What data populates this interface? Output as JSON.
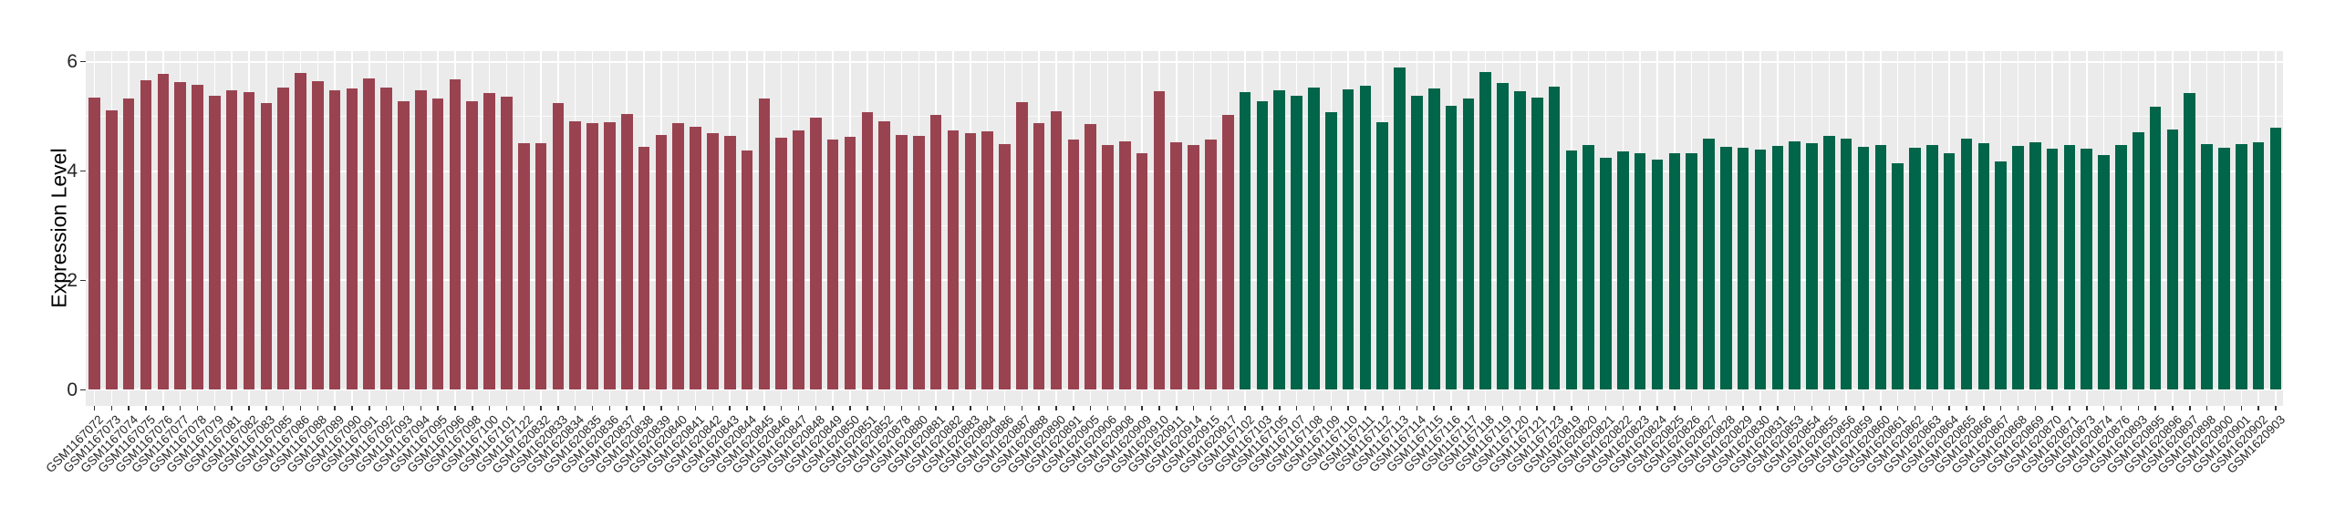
{
  "chart_data": {
    "type": "bar",
    "title": "",
    "xlabel": "",
    "ylabel": "Expression Level",
    "ylim": [
      -0.3,
      6.2
    ],
    "yticks": [
      0,
      2,
      4,
      6
    ],
    "yminor": [
      1,
      3,
      5
    ],
    "grid": "on",
    "legend": "none",
    "panel_bg": "#EBEBEB",
    "grid_color": "#FFFFFF",
    "tick_color": "#333333",
    "group_colors": {
      "A": "#9A4350",
      "B": "#016549"
    },
    "samples": [
      {
        "id": "GSM1167072",
        "v": 5.35,
        "g": "A"
      },
      {
        "id": "GSM1167073",
        "v": 5.11,
        "g": "A"
      },
      {
        "id": "GSM1167074",
        "v": 5.32,
        "g": "A"
      },
      {
        "id": "GSM1167075",
        "v": 5.66,
        "g": "A"
      },
      {
        "id": "GSM1167076",
        "v": 5.78,
        "g": "A"
      },
      {
        "id": "GSM1167077",
        "v": 5.62,
        "g": "A"
      },
      {
        "id": "GSM1167078",
        "v": 5.57,
        "g": "A"
      },
      {
        "id": "GSM1167079",
        "v": 5.38,
        "g": "A"
      },
      {
        "id": "GSM1167081",
        "v": 5.48,
        "g": "A"
      },
      {
        "id": "GSM1167082",
        "v": 5.45,
        "g": "A"
      },
      {
        "id": "GSM1167083",
        "v": 5.25,
        "g": "A"
      },
      {
        "id": "GSM1167085",
        "v": 5.53,
        "g": "A"
      },
      {
        "id": "GSM1167086",
        "v": 5.79,
        "g": "A"
      },
      {
        "id": "GSM1167088",
        "v": 5.65,
        "g": "A"
      },
      {
        "id": "GSM1167089",
        "v": 5.48,
        "g": "A"
      },
      {
        "id": "GSM1167090",
        "v": 5.51,
        "g": "A"
      },
      {
        "id": "GSM1167091",
        "v": 5.7,
        "g": "A"
      },
      {
        "id": "GSM1167092",
        "v": 5.53,
        "g": "A"
      },
      {
        "id": "GSM1167093",
        "v": 5.28,
        "g": "A"
      },
      {
        "id": "GSM1167094",
        "v": 5.47,
        "g": "A"
      },
      {
        "id": "GSM1167095",
        "v": 5.32,
        "g": "A"
      },
      {
        "id": "GSM1167096",
        "v": 5.67,
        "g": "A"
      },
      {
        "id": "GSM1167098",
        "v": 5.27,
        "g": "A"
      },
      {
        "id": "GSM1167100",
        "v": 5.42,
        "g": "A"
      },
      {
        "id": "GSM1167101",
        "v": 5.36,
        "g": "A"
      },
      {
        "id": "GSM1167122",
        "v": 4.51,
        "g": "A"
      },
      {
        "id": "GSM1620832",
        "v": 4.51,
        "g": "A"
      },
      {
        "id": "GSM1620833",
        "v": 5.24,
        "g": "A"
      },
      {
        "id": "GSM1620834",
        "v": 4.91,
        "g": "A"
      },
      {
        "id": "GSM1620835",
        "v": 4.88,
        "g": "A"
      },
      {
        "id": "GSM1620836",
        "v": 4.89,
        "g": "A"
      },
      {
        "id": "GSM1620837",
        "v": 5.05,
        "g": "A"
      },
      {
        "id": "GSM1620838",
        "v": 4.45,
        "g": "A"
      },
      {
        "id": "GSM1620839",
        "v": 4.66,
        "g": "A"
      },
      {
        "id": "GSM1620840",
        "v": 4.87,
        "g": "A"
      },
      {
        "id": "GSM1620841",
        "v": 4.81,
        "g": "A"
      },
      {
        "id": "GSM1620842",
        "v": 4.7,
        "g": "A"
      },
      {
        "id": "GSM1620843",
        "v": 4.64,
        "g": "A"
      },
      {
        "id": "GSM1620844",
        "v": 4.38,
        "g": "A"
      },
      {
        "id": "GSM1620845",
        "v": 5.33,
        "g": "A"
      },
      {
        "id": "GSM1620846",
        "v": 4.61,
        "g": "A"
      },
      {
        "id": "GSM1620847",
        "v": 4.74,
        "g": "A"
      },
      {
        "id": "GSM1620848",
        "v": 4.98,
        "g": "A"
      },
      {
        "id": "GSM1620849",
        "v": 4.58,
        "g": "A"
      },
      {
        "id": "GSM1620850",
        "v": 4.62,
        "g": "A"
      },
      {
        "id": "GSM1620851",
        "v": 5.08,
        "g": "A"
      },
      {
        "id": "GSM1620852",
        "v": 4.91,
        "g": "A"
      },
      {
        "id": "GSM1620878",
        "v": 4.66,
        "g": "A"
      },
      {
        "id": "GSM1620880",
        "v": 4.64,
        "g": "A"
      },
      {
        "id": "GSM1620881",
        "v": 5.03,
        "g": "A"
      },
      {
        "id": "GSM1620882",
        "v": 4.74,
        "g": "A"
      },
      {
        "id": "GSM1620883",
        "v": 4.69,
        "g": "A"
      },
      {
        "id": "GSM1620884",
        "v": 4.73,
        "g": "A"
      },
      {
        "id": "GSM1620886",
        "v": 4.49,
        "g": "A"
      },
      {
        "id": "GSM1620887",
        "v": 5.26,
        "g": "A"
      },
      {
        "id": "GSM1620888",
        "v": 4.88,
        "g": "A"
      },
      {
        "id": "GSM1620890",
        "v": 5.09,
        "g": "A"
      },
      {
        "id": "GSM1620891",
        "v": 4.58,
        "g": "A"
      },
      {
        "id": "GSM1620905",
        "v": 4.86,
        "g": "A"
      },
      {
        "id": "GSM1620906",
        "v": 4.48,
        "g": "A"
      },
      {
        "id": "GSM1620908",
        "v": 4.55,
        "g": "A"
      },
      {
        "id": "GSM1620909",
        "v": 4.33,
        "g": "A"
      },
      {
        "id": "GSM1620910",
        "v": 5.46,
        "g": "A"
      },
      {
        "id": "GSM1620911",
        "v": 4.53,
        "g": "A"
      },
      {
        "id": "GSM1620914",
        "v": 4.47,
        "g": "A"
      },
      {
        "id": "GSM1620915",
        "v": 4.58,
        "g": "A"
      },
      {
        "id": "GSM1620917",
        "v": 5.02,
        "g": "A"
      },
      {
        "id": "GSM1167102",
        "v": 5.45,
        "g": "B"
      },
      {
        "id": "GSM1167103",
        "v": 5.28,
        "g": "B"
      },
      {
        "id": "GSM1167105",
        "v": 5.48,
        "g": "B"
      },
      {
        "id": "GSM1167107",
        "v": 5.38,
        "g": "B"
      },
      {
        "id": "GSM1167108",
        "v": 5.52,
        "g": "B"
      },
      {
        "id": "GSM1167109",
        "v": 5.07,
        "g": "B"
      },
      {
        "id": "GSM1167110",
        "v": 5.49,
        "g": "B"
      },
      {
        "id": "GSM1167111",
        "v": 5.56,
        "g": "B"
      },
      {
        "id": "GSM1167112",
        "v": 4.89,
        "g": "B"
      },
      {
        "id": "GSM1167113",
        "v": 5.9,
        "g": "B"
      },
      {
        "id": "GSM1167114",
        "v": 5.37,
        "g": "B"
      },
      {
        "id": "GSM1167115",
        "v": 5.51,
        "g": "B"
      },
      {
        "id": "GSM1167116",
        "v": 5.2,
        "g": "B"
      },
      {
        "id": "GSM1167117",
        "v": 5.33,
        "g": "B"
      },
      {
        "id": "GSM1167118",
        "v": 5.81,
        "g": "B"
      },
      {
        "id": "GSM1167119",
        "v": 5.61,
        "g": "B"
      },
      {
        "id": "GSM1167120",
        "v": 5.46,
        "g": "B"
      },
      {
        "id": "GSM1167121",
        "v": 5.34,
        "g": "B"
      },
      {
        "id": "GSM1167123",
        "v": 5.54,
        "g": "B"
      },
      {
        "id": "GSM1620819",
        "v": 4.37,
        "g": "B"
      },
      {
        "id": "GSM1620820",
        "v": 4.47,
        "g": "B"
      },
      {
        "id": "GSM1620821",
        "v": 4.24,
        "g": "B"
      },
      {
        "id": "GSM1620822",
        "v": 4.36,
        "g": "B"
      },
      {
        "id": "GSM1620823",
        "v": 4.32,
        "g": "B"
      },
      {
        "id": "GSM1620824",
        "v": 4.21,
        "g": "B"
      },
      {
        "id": "GSM1620825",
        "v": 4.33,
        "g": "B"
      },
      {
        "id": "GSM1620826",
        "v": 4.33,
        "g": "B"
      },
      {
        "id": "GSM1620827",
        "v": 4.59,
        "g": "B"
      },
      {
        "id": "GSM1620828",
        "v": 4.44,
        "g": "B"
      },
      {
        "id": "GSM1620829",
        "v": 4.43,
        "g": "B"
      },
      {
        "id": "GSM1620830",
        "v": 4.39,
        "g": "B"
      },
      {
        "id": "GSM1620831",
        "v": 4.46,
        "g": "B"
      },
      {
        "id": "GSM1620853",
        "v": 4.54,
        "g": "B"
      },
      {
        "id": "GSM1620854",
        "v": 4.51,
        "g": "B"
      },
      {
        "id": "GSM1620855",
        "v": 4.64,
        "g": "B"
      },
      {
        "id": "GSM1620856",
        "v": 4.59,
        "g": "B"
      },
      {
        "id": "GSM1620859",
        "v": 4.44,
        "g": "B"
      },
      {
        "id": "GSM1620860",
        "v": 4.48,
        "g": "B"
      },
      {
        "id": "GSM1620861",
        "v": 4.15,
        "g": "B"
      },
      {
        "id": "GSM1620862",
        "v": 4.42,
        "g": "B"
      },
      {
        "id": "GSM1620863",
        "v": 4.48,
        "g": "B"
      },
      {
        "id": "GSM1620864",
        "v": 4.32,
        "g": "B"
      },
      {
        "id": "GSM1620865",
        "v": 4.6,
        "g": "B"
      },
      {
        "id": "GSM1620866",
        "v": 4.51,
        "g": "B"
      },
      {
        "id": "GSM1620867",
        "v": 4.17,
        "g": "B"
      },
      {
        "id": "GSM1620868",
        "v": 4.46,
        "g": "B"
      },
      {
        "id": "GSM1620869",
        "v": 4.53,
        "g": "B"
      },
      {
        "id": "GSM1620870",
        "v": 4.41,
        "g": "B"
      },
      {
        "id": "GSM1620871",
        "v": 4.47,
        "g": "B"
      },
      {
        "id": "GSM1620873",
        "v": 4.41,
        "g": "B"
      },
      {
        "id": "GSM1620874",
        "v": 4.29,
        "g": "B"
      },
      {
        "id": "GSM1620876",
        "v": 4.48,
        "g": "B"
      },
      {
        "id": "GSM1620893",
        "v": 4.71,
        "g": "B"
      },
      {
        "id": "GSM1620895",
        "v": 5.18,
        "g": "B"
      },
      {
        "id": "GSM1620896",
        "v": 4.76,
        "g": "B"
      },
      {
        "id": "GSM1620897",
        "v": 5.43,
        "g": "B"
      },
      {
        "id": "GSM1620898",
        "v": 4.49,
        "g": "B"
      },
      {
        "id": "GSM1620900",
        "v": 4.43,
        "g": "B"
      },
      {
        "id": "GSM1620901",
        "v": 4.49,
        "g": "B"
      },
      {
        "id": "GSM1620902",
        "v": 4.53,
        "g": "B"
      },
      {
        "id": "GSM1620903",
        "v": 4.79,
        "g": "B"
      }
    ]
  }
}
